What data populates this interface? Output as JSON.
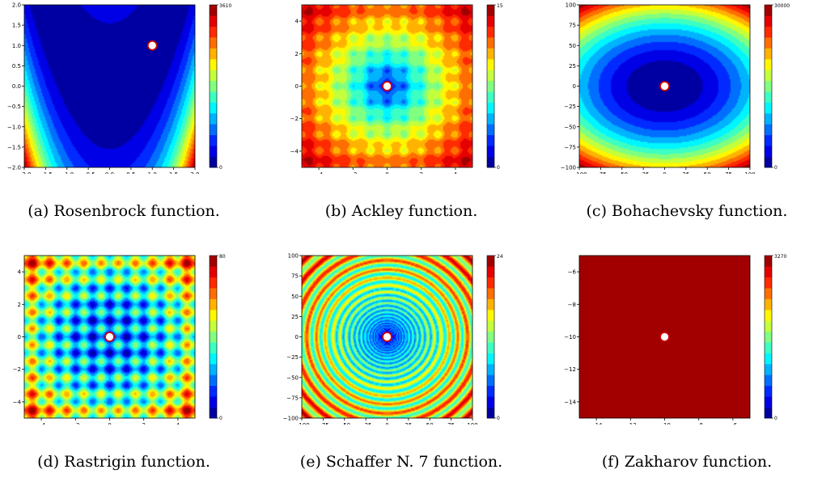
{
  "chart_data": [
    {
      "type": "heatmap",
      "function": "rosenbrock",
      "caption": "(a) Rosenbrock function.",
      "xlim": [
        -2,
        2
      ],
      "ylim": [
        -2,
        2
      ],
      "xticks": [
        -2.0,
        -1.5,
        -1.0,
        -0.5,
        0.0,
        0.5,
        1.0,
        1.5,
        2.0
      ],
      "xtick_labels": [
        "−2.0",
        "−1.5",
        "−1.0",
        "−0.5",
        "0.0",
        "0.5",
        "1.0",
        "1.5",
        "2.0"
      ],
      "yticks": [
        -2.0,
        -1.5,
        -1.0,
        -0.5,
        0.0,
        0.5,
        1.0,
        1.5,
        2.0
      ],
      "ytick_labels": [
        "−2.0",
        "−1.5",
        "−1.0",
        "−0.5",
        "0.0",
        "0.5",
        "1.0",
        "1.5",
        "2.0"
      ],
      "colorbar": {
        "min": 0,
        "max": 3610,
        "labels": [
          "3610",
          "0"
        ]
      },
      "optimum": {
        "x": 1,
        "y": 1
      }
    },
    {
      "type": "heatmap",
      "function": "ackley",
      "caption": "(b) Ackley function.",
      "xlim": [
        -5,
        5
      ],
      "ylim": [
        -5,
        5
      ],
      "xticks": [
        -4,
        -2,
        0,
        2,
        4
      ],
      "xtick_labels": [
        "−4",
        "−2",
        "0",
        "2",
        "4"
      ],
      "yticks": [
        -4,
        -2,
        0,
        2,
        4
      ],
      "ytick_labels": [
        "−4",
        "−2",
        "0",
        "2",
        "4"
      ],
      "colorbar": {
        "min": 0,
        "max": 15,
        "labels": [
          "15",
          "0"
        ]
      },
      "optimum": {
        "x": 0,
        "y": 0
      }
    },
    {
      "type": "heatmap",
      "function": "bohachevsky",
      "caption": "(c) Bohachevsky function.",
      "xlim": [
        -100,
        100
      ],
      "ylim": [
        -100,
        100
      ],
      "xticks": [
        -100,
        -75,
        -50,
        -25,
        0,
        25,
        50,
        75,
        100
      ],
      "xtick_labels": [
        "−100",
        "−75",
        "−50",
        "−25",
        "0",
        "25",
        "50",
        "75",
        "100"
      ],
      "yticks": [
        -100,
        -75,
        -50,
        -25,
        0,
        25,
        50,
        75,
        100
      ],
      "ytick_labels": [
        "−100",
        "−75",
        "−50",
        "−25",
        "0",
        "25",
        "50",
        "75",
        "100"
      ],
      "colorbar": {
        "min": 0,
        "max": 30000,
        "labels": [
          "30000",
          "0"
        ]
      },
      "optimum": {
        "x": 0,
        "y": 0
      }
    },
    {
      "type": "heatmap",
      "function": "rastrigin",
      "caption": "(d) Rastrigin function.",
      "xlim": [
        -5,
        5
      ],
      "ylim": [
        -5,
        5
      ],
      "xticks": [
        -4,
        -2,
        0,
        2,
        4
      ],
      "xtick_labels": [
        "−4",
        "−2",
        "0",
        "2",
        "4"
      ],
      "yticks": [
        -4,
        -2,
        0,
        2,
        4
      ],
      "ytick_labels": [
        "−4",
        "−2",
        "0",
        "2",
        "4"
      ],
      "colorbar": {
        "min": 0,
        "max": 80,
        "labels": [
          "80",
          "0"
        ]
      },
      "optimum": {
        "x": 0,
        "y": 0
      }
    },
    {
      "type": "heatmap",
      "function": "schaffer7",
      "caption": "(e) Schaffer N. 7 function.",
      "xlim": [
        -100,
        100
      ],
      "ylim": [
        -100,
        100
      ],
      "xticks": [
        -100,
        -75,
        -50,
        -25,
        0,
        25,
        50,
        75,
        100
      ],
      "xtick_labels": [
        "−100",
        "−75",
        "−50",
        "−25",
        "0",
        "25",
        "50",
        "75",
        "100"
      ],
      "yticks": [
        -100,
        -75,
        -50,
        -25,
        0,
        25,
        50,
        75,
        100
      ],
      "ytick_labels": [
        "−100",
        "−75",
        "−50",
        "−25",
        "0",
        "25",
        "50",
        "75",
        "100"
      ],
      "colorbar": {
        "min": 0,
        "max": 24,
        "labels": [
          "24",
          "0"
        ]
      },
      "optimum": {
        "x": 0,
        "y": 0
      }
    },
    {
      "type": "heatmap",
      "function": "zakharov",
      "caption": "(f) Zakharov function.",
      "xlim": [
        -15,
        -5
      ],
      "ylim": [
        -15,
        -5
      ],
      "xticks": [
        -14,
        -12,
        -10,
        -8,
        -6
      ],
      "xtick_labels": [
        "−14",
        "−12",
        "−10",
        "−8",
        "−6"
      ],
      "yticks": [
        -14,
        -12,
        -10,
        -8,
        -6
      ],
      "ytick_labels": [
        "−14",
        "−12",
        "−10",
        "−8",
        "−6"
      ],
      "colorbar": {
        "min": 0,
        "max": 3270,
        "labels": [
          "3270",
          "0"
        ]
      },
      "optimum": {
        "x": -10,
        "y": -10
      }
    }
  ],
  "colors": {
    "colormap": "jet",
    "optimum_marker_fill": "#ffffff",
    "optimum_marker_edge": "#cc0000"
  }
}
